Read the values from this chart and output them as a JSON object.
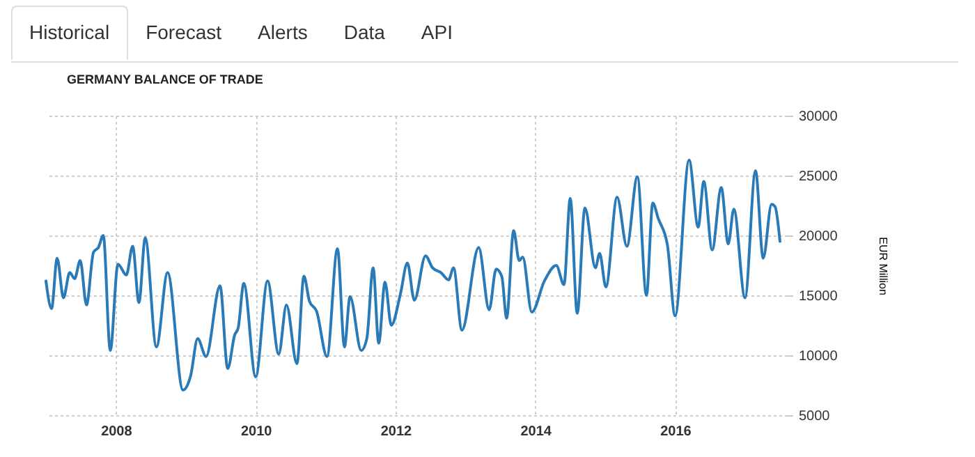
{
  "chart_data": {
    "type": "line",
    "title": "GERMANY BALANCE OF TRADE",
    "ylabel": "EUR Million",
    "annotations": [
      "Historical",
      "Forecast",
      "Alerts",
      "Data",
      "API"
    ],
    "x": [
      2007.0,
      2007.08,
      2007.16,
      2007.25,
      2007.34,
      2007.41,
      2007.49,
      2007.58,
      2007.68,
      2007.75,
      2007.82,
      2007.92,
      2008.03,
      2008.15,
      2008.24,
      2008.33,
      2008.42,
      2008.58,
      2008.74,
      2008.96,
      2009.07,
      2009.17,
      2009.29,
      2009.49,
      2009.6,
      2009.7,
      2009.75,
      2009.83,
      2010.0,
      2010.17,
      2010.33,
      2010.44,
      2010.59,
      2010.69,
      2010.77,
      2010.87,
      2011.02,
      2011.17,
      2011.27,
      2011.35,
      2011.51,
      2011.59,
      2011.68,
      2011.76,
      2011.85,
      2011.94,
      2012.07,
      2012.17,
      2012.27,
      2012.43,
      2012.53,
      2012.65,
      2012.76,
      2012.83,
      2012.95,
      2013.19,
      2013.34,
      2013.44,
      2013.52,
      2013.59,
      2013.69,
      2013.77,
      2013.82,
      2013.95,
      2014.13,
      2014.3,
      2014.41,
      2014.5,
      2014.6,
      2014.71,
      2014.86,
      2014.92,
      2015.01,
      2015.17,
      2015.31,
      2015.46,
      2015.59,
      2015.68,
      2015.76,
      2015.89,
      2016.0,
      2016.2,
      2016.33,
      2016.41,
      2016.53,
      2016.66,
      2016.76,
      2016.84,
      2017.0,
      2017.15,
      2017.26,
      2017.38,
      2017.43,
      2017.5
    ],
    "series": [
      {
        "color": "#2a7ab8",
        "values": [
          16200,
          13900,
          18100,
          14800,
          16900,
          16400,
          17900,
          14200,
          18600,
          19000,
          20000,
          10400,
          17600,
          16700,
          19100,
          14400,
          19800,
          10700,
          16900,
          7100,
          8300,
          11400,
          9900,
          15800,
          8900,
          11700,
          12300,
          16000,
          8200,
          16200,
          10100,
          14200,
          9300,
          16600,
          14500,
          13700,
          9900,
          18900,
          10700,
          14900,
          10400,
          11400,
          17300,
          11000,
          16100,
          12500,
          15100,
          17700,
          14600,
          18300,
          17300,
          16900,
          16300,
          17300,
          12100,
          19000,
          13800,
          17200,
          16600,
          13100,
          20400,
          17900,
          18200,
          13600,
          16200,
          17500,
          15900,
          23100,
          13500,
          22300,
          17300,
          18500,
          15700,
          23200,
          19100,
          24900,
          15000,
          22700,
          21400,
          19200,
          13300,
          26300,
          20700,
          24500,
          18800,
          24000,
          19300,
          22200,
          14800,
          25400,
          18100,
          22600,
          22400,
          19500
        ]
      }
    ],
    "xlim": [
      2007,
      2017.6
    ],
    "xticks": [
      2008,
      2010,
      2012,
      2014,
      2016
    ],
    "ylim": [
      5000,
      30000
    ],
    "yticks": [
      5000,
      10000,
      15000,
      20000,
      25000,
      30000
    ],
    "grid": true,
    "legend": false
  }
}
